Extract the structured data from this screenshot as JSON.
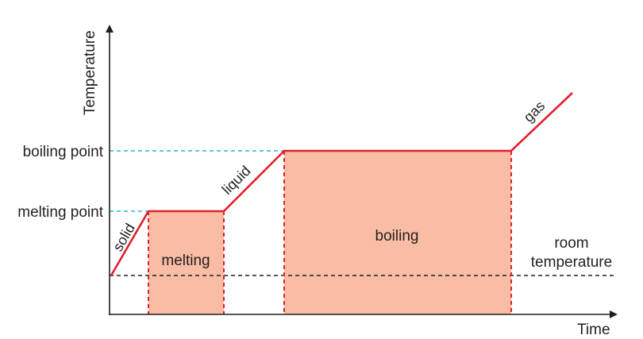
{
  "axes": {
    "y_label": "Temperature",
    "x_label": "Time"
  },
  "levels": {
    "boiling_point": "boiling point",
    "melting_point": "melting point",
    "room_temperature_line1": "room",
    "room_temperature_line2": "temperature"
  },
  "segments": {
    "solid": "solid",
    "liquid": "liquid",
    "gas": "gas"
  },
  "regions": {
    "melting": "melting",
    "boiling": "boiling"
  },
  "colors": {
    "curve": "#e0202a",
    "region_fill": "#f8bda4",
    "guide_dashed": "#29b6d6",
    "room_dashed": "#231f20",
    "axis": "#231f20"
  }
}
